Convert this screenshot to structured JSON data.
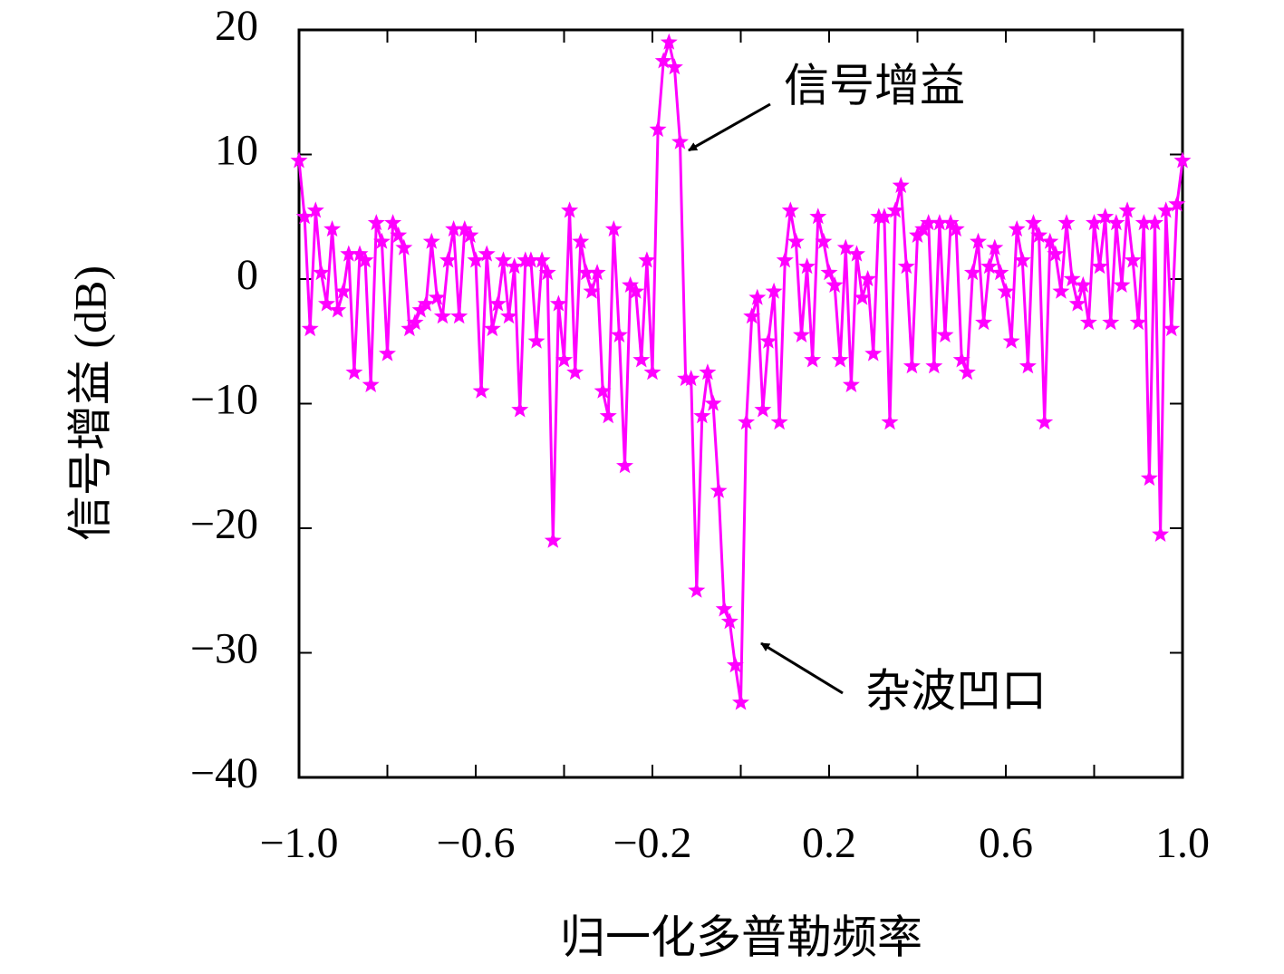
{
  "chart_data": {
    "type": "line",
    "xlabel": "归一化多普勒频率",
    "ylabel": "信号增益 (dB)",
    "annotations": [
      "信号增益",
      "杂波凹口"
    ],
    "x": [
      -1,
      -0.9875,
      -0.975,
      -0.9625,
      -0.95,
      -0.9375,
      -0.925,
      -0.9125,
      -0.9,
      -0.8875,
      -0.875,
      -0.8625,
      -0.85,
      -0.8375,
      -0.825,
      -0.8125,
      -0.8,
      -0.7875,
      -0.775,
      -0.7625,
      -0.75,
      -0.7375,
      -0.725,
      -0.7125,
      -0.7,
      -0.6875,
      -0.675,
      -0.6625,
      -0.65,
      -0.6375,
      -0.625,
      -0.6125,
      -0.6,
      -0.5875,
      -0.575,
      -0.5625,
      -0.55,
      -0.5375,
      -0.525,
      -0.5125,
      -0.5,
      -0.4875,
      -0.475,
      -0.4625,
      -0.45,
      -0.4375,
      -0.425,
      -0.4125,
      -0.4,
      -0.3875,
      -0.375,
      -0.3625,
      -0.35,
      -0.3375,
      -0.325,
      -0.3125,
      -0.3,
      -0.2875,
      -0.275,
      -0.2625,
      -0.25,
      -0.2375,
      -0.225,
      -0.2125,
      -0.2,
      -0.1875,
      -0.175,
      -0.1625,
      -0.15,
      -0.1375,
      -0.125,
      -0.1125,
      -0.1,
      -0.0875,
      -0.075,
      -0.0625,
      -0.05,
      -0.0375,
      -0.025,
      -0.0125,
      0,
      0.0125,
      0.025,
      0.0375,
      0.05,
      0.0625,
      0.075,
      0.0875,
      0.1,
      0.1125,
      0.125,
      0.1375,
      0.15,
      0.1625,
      0.175,
      0.1875,
      0.2,
      0.2125,
      0.225,
      0.2375,
      0.25,
      0.2625,
      0.275,
      0.2875,
      0.3,
      0.3125,
      0.325,
      0.3375,
      0.35,
      0.3625,
      0.375,
      0.3875,
      0.4,
      0.4125,
      0.425,
      0.4375,
      0.45,
      0.4625,
      0.475,
      0.4875,
      0.5,
      0.5125,
      0.525,
      0.5375,
      0.55,
      0.5625,
      0.575,
      0.5875,
      0.6,
      0.6125,
      0.625,
      0.6375,
      0.65,
      0.6625,
      0.675,
      0.6875,
      0.7,
      0.7125,
      0.725,
      0.7375,
      0.75,
      0.7625,
      0.775,
      0.7875,
      0.8,
      0.8125,
      0.825,
      0.8375,
      0.85,
      0.8625,
      0.875,
      0.8875,
      0.9,
      0.9125,
      0.925,
      0.9375,
      0.95,
      0.9625,
      0.975,
      0.9875,
      1
    ],
    "series": [
      {
        "color": "#ff00ff",
        "values": [
          9.5,
          5,
          -4,
          5.5,
          0.5,
          -2,
          4,
          -2.5,
          -1,
          2,
          -7.5,
          2,
          1.5,
          -8.5,
          4.5,
          3,
          -6,
          4.5,
          3.5,
          2.5,
          -4,
          -3.5,
          -2.5,
          -2,
          3,
          -1.5,
          -3,
          1.5,
          4,
          -3,
          4,
          3.5,
          1.5,
          -9,
          2,
          -4,
          -2,
          1.5,
          -3,
          1,
          -10.5,
          1.5,
          1.5,
          -5,
          1.5,
          0.5,
          -21,
          -2,
          -6.5,
          5.5,
          -7.5,
          3,
          0.5,
          -1,
          0.5,
          -9,
          -11,
          4,
          -4.5,
          -15,
          -0.5,
          -1,
          -6.5,
          1.5,
          -7.5,
          12,
          17.5,
          19,
          17,
          11,
          -8,
          -8,
          -25,
          -11,
          -7.5,
          -10,
          -17,
          -26.5,
          -27.5,
          -31,
          -34,
          -11.5,
          -3,
          -1.5,
          -10.5,
          -5,
          -1,
          -11.5,
          1.5,
          5.5,
          3,
          -4.5,
          1,
          -6.5,
          5,
          3,
          0.5,
          -0.5,
          -6.5,
          2.5,
          -8.5,
          2,
          -1.5,
          0,
          -6,
          5,
          5,
          -11.5,
          5.5,
          7.5,
          1,
          -7,
          3.5,
          4,
          4.5,
          -7,
          4.5,
          -4.5,
          4.5,
          4,
          -6.5,
          -7.5,
          0.5,
          3,
          -3.5,
          1,
          2.5,
          0.5,
          -1,
          -5,
          4,
          1.5,
          -7,
          4.5,
          3.5,
          -11.5,
          3,
          2,
          -1,
          4.5,
          0,
          -2,
          -0.5,
          -3.5,
          4.5,
          1,
          5,
          -3.5,
          4.5,
          -0.5,
          5.5,
          1.5,
          -3.5,
          4.5,
          -16,
          4.5,
          -20.5,
          5.5,
          -4,
          6,
          9.5
        ]
      }
    ],
    "xlim": [
      -1,
      1
    ],
    "ylim": [
      -40,
      20
    ],
    "xticks": [
      {
        "value": -1,
        "label": "−1.0"
      },
      {
        "value": -0.6,
        "label": "−0.6"
      },
      {
        "value": -0.2,
        "label": "−0.2"
      },
      {
        "value": 0.2,
        "label": "0.2"
      },
      {
        "value": 0.6,
        "label": "0.6"
      },
      {
        "value": 1,
        "label": "1.0"
      }
    ],
    "xminorticks": [
      -0.8,
      -0.4,
      0,
      0.4,
      0.8
    ],
    "yticks": [
      {
        "value": -40,
        "label": "−40"
      },
      {
        "value": -30,
        "label": "−30"
      },
      {
        "value": -20,
        "label": "−20"
      },
      {
        "value": -10,
        "label": "−10"
      },
      0,
      10,
      20
    ],
    "grid": false
  }
}
